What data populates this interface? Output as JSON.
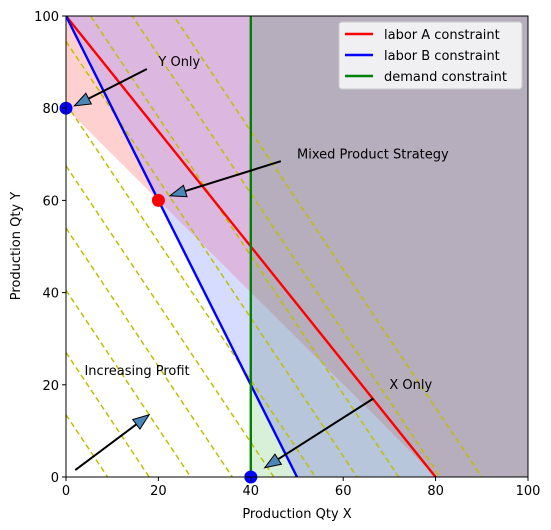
{
  "chart_data": {
    "type": "line",
    "title": "",
    "xlabel": "Production Qty X",
    "ylabel": "Production Qty Y",
    "xlim": [
      0,
      100
    ],
    "ylim": [
      0,
      100
    ],
    "xticks": [
      0,
      20,
      40,
      60,
      80,
      100
    ],
    "yticks": [
      0,
      20,
      40,
      60,
      80,
      100
    ],
    "grid": false,
    "legend_position": "upper-right",
    "series": [
      {
        "name": "labor A constraint",
        "color": "#ff0000",
        "x": [
          0,
          80
        ],
        "y": [
          100,
          0
        ]
      },
      {
        "name": "labor B constraint",
        "color": "#0000ff",
        "x": [
          0,
          50
        ],
        "y": [
          100,
          0
        ]
      },
      {
        "name": "demand constraint",
        "color": "#008000",
        "x": [
          40,
          40
        ],
        "y": [
          0,
          100
        ]
      }
    ],
    "iso_profit_lines": {
      "color": "#bfbf00",
      "style": "dashed",
      "slope": -1.5,
      "x_intercepts": [
        9,
        18,
        27,
        36,
        45,
        54,
        63,
        72,
        81,
        90
      ]
    },
    "regions": [
      {
        "color": "#ffd0d0",
        "points": [
          [
            0,
            100
          ],
          [
            0,
            80
          ],
          [
            20,
            60
          ]
        ]
      },
      {
        "color": "#d6dcff",
        "points": [
          [
            20,
            60
          ],
          [
            40,
            20
          ],
          [
            40,
            40
          ]
        ]
      },
      {
        "color": "#d8f0d8",
        "points": [
          [
            40,
            0
          ],
          [
            50,
            0
          ],
          [
            40,
            20
          ]
        ]
      },
      {
        "color": "#dcb7df",
        "points": [
          [
            0,
            100
          ],
          [
            40,
            100
          ],
          [
            40,
            40
          ],
          [
            20,
            60
          ]
        ]
      },
      {
        "color": "#b6aebd",
        "points": [
          [
            40,
            100
          ],
          [
            100,
            100
          ],
          [
            100,
            0
          ],
          [
            80,
            0
          ],
          [
            40,
            40
          ]
        ]
      },
      {
        "color": "#b7c6da",
        "points": [
          [
            40,
            40
          ],
          [
            80,
            0
          ],
          [
            50,
            0
          ],
          [
            40,
            20
          ]
        ]
      }
    ],
    "points": [
      {
        "x": 0,
        "y": 80,
        "color": "#0000ff"
      },
      {
        "x": 20,
        "y": 60,
        "color": "#ff0000"
      },
      {
        "x": 40,
        "y": 0,
        "color": "#0000ff"
      }
    ],
    "annotations": [
      {
        "text": "Y Only",
        "x": 20,
        "y": 90,
        "ax": 17.5,
        "ay": 88.5,
        "hx": 1.8,
        "hy": 80.5
      },
      {
        "text": "Mixed Product Strategy",
        "x": 50,
        "y": 70,
        "ax": 46.5,
        "ay": 68.5,
        "hx": 22.5,
        "hy": 61
      },
      {
        "text": "Increasing Profit",
        "x": 4,
        "y": 23,
        "ax": 2,
        "ay": 1.5,
        "hx": 18,
        "hy": 13.5
      },
      {
        "text": "X Only",
        "x": 70,
        "y": 20,
        "ax": 66.5,
        "ay": 17,
        "hx": 43,
        "hy": 2
      }
    ]
  }
}
